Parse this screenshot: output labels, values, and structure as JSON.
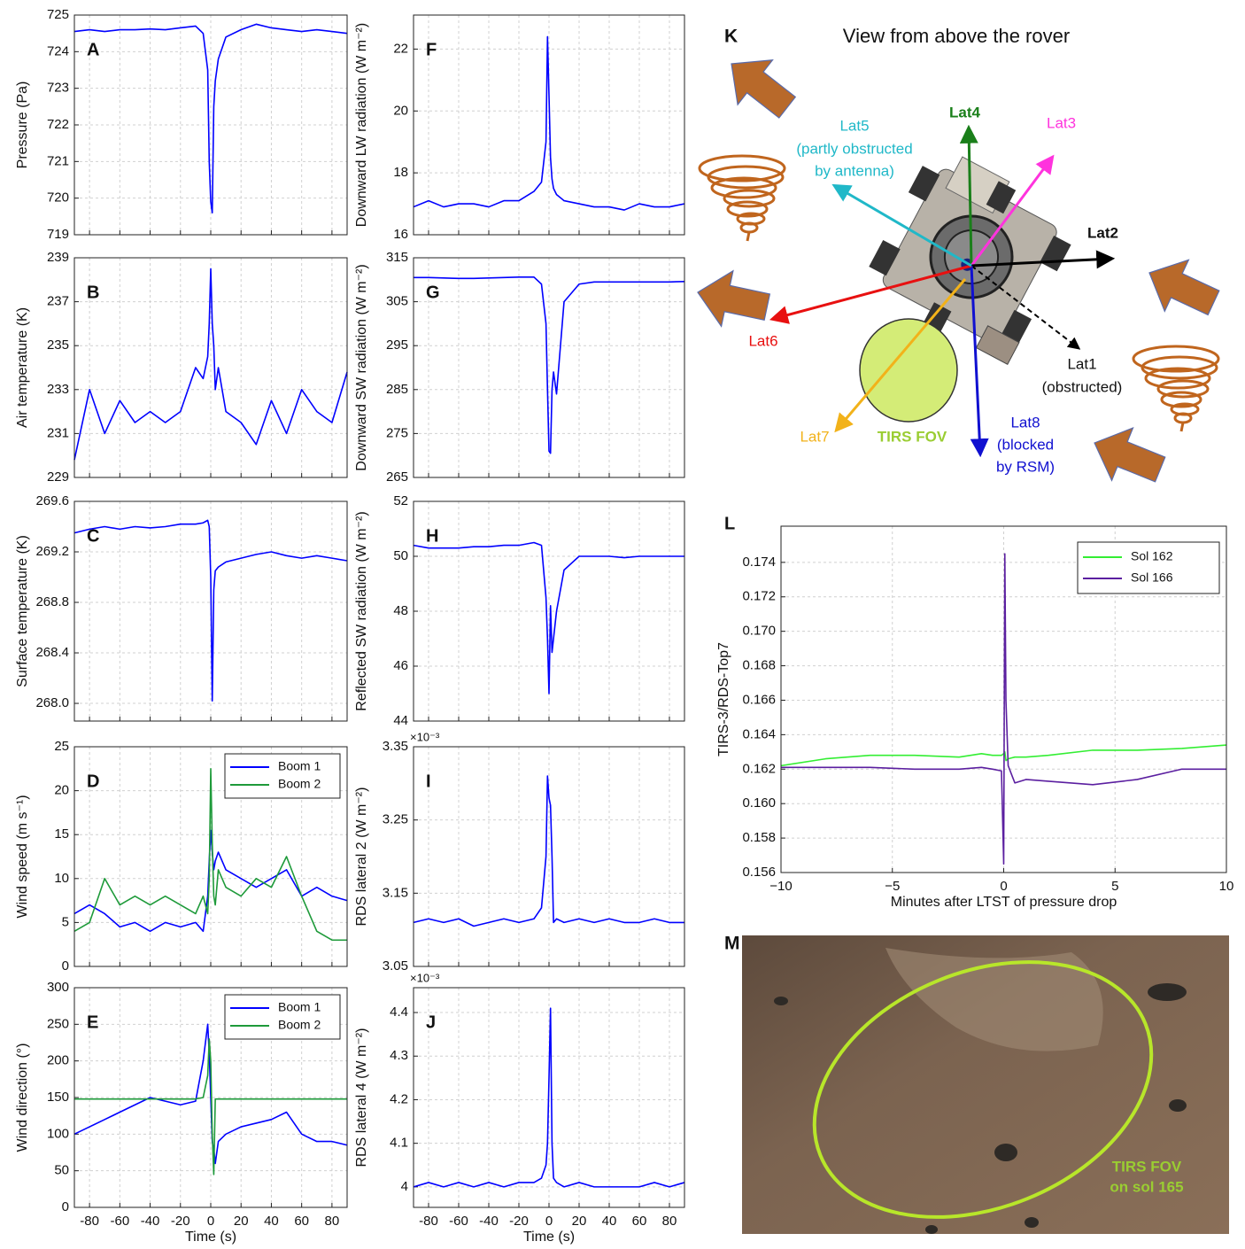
{
  "chart_data": [
    {
      "type": "line",
      "panel_label": "A",
      "ylabel": "Pressure (Pa)",
      "xlim": [
        -90,
        90
      ],
      "xticks": [
        -80,
        -60,
        -40,
        -20,
        0,
        20,
        40,
        60,
        80
      ],
      "xtick_labels": false,
      "ylim": [
        719,
        725
      ],
      "yticks": [
        719,
        720,
        721,
        722,
        723,
        724,
        725
      ],
      "grid": true,
      "x": [
        -90,
        -80,
        -70,
        -60,
        -50,
        -40,
        -30,
        -20,
        -10,
        -5,
        -2,
        -1,
        0,
        1,
        2,
        3,
        5,
        10,
        20,
        30,
        40,
        50,
        60,
        70,
        80,
        90
      ],
      "series": [
        {
          "color": "#0000ff",
          "values": [
            724.55,
            724.6,
            724.55,
            724.6,
            724.6,
            724.62,
            724.6,
            724.65,
            724.7,
            724.5,
            723.5,
            721,
            719.9,
            719.6,
            722.5,
            723.2,
            723.8,
            724.4,
            724.6,
            724.75,
            724.65,
            724.6,
            724.55,
            724.6,
            724.55,
            724.5
          ]
        }
      ]
    },
    {
      "type": "line",
      "panel_label": "B",
      "ylabel": "Air temperature (K)",
      "xlim": [
        -90,
        90
      ],
      "xticks": [
        -80,
        -60,
        -40,
        -20,
        0,
        20,
        40,
        60,
        80
      ],
      "xtick_labels": false,
      "ylim": [
        229,
        239
      ],
      "yticks": [
        229,
        231,
        233,
        235,
        237,
        239
      ],
      "grid": true,
      "x": [
        -90,
        -80,
        -70,
        -60,
        -50,
        -40,
        -30,
        -20,
        -10,
        -5,
        -2,
        -1,
        0,
        1,
        2,
        3,
        5,
        10,
        20,
        30,
        40,
        50,
        60,
        70,
        80,
        90
      ],
      "series": [
        {
          "color": "#0000ff",
          "values": [
            229.8,
            233,
            231,
            232.5,
            231.5,
            232,
            231.5,
            232,
            234,
            233.5,
            234.5,
            236,
            238.5,
            236,
            235,
            233,
            234,
            232,
            231.5,
            230.5,
            232.5,
            231,
            233,
            232,
            231.5,
            233.8
          ]
        }
      ]
    },
    {
      "type": "line",
      "panel_label": "C",
      "ylabel": "Surface temperature (K)",
      "xlim": [
        -90,
        90
      ],
      "xticks": [
        -80,
        -60,
        -40,
        -20,
        0,
        20,
        40,
        60,
        80
      ],
      "xtick_labels": false,
      "ylim": [
        267.86,
        269.6
      ],
      "yticks": [
        {
          "value": 268,
          "label": "268.0"
        },
        268.4,
        268.8,
        269.2,
        269.6
      ],
      "grid": true,
      "x": [
        -90,
        -80,
        -70,
        -60,
        -50,
        -40,
        -30,
        -20,
        -10,
        -5,
        -2,
        -1,
        0,
        1,
        2,
        3,
        5,
        10,
        20,
        30,
        40,
        50,
        60,
        70,
        80,
        90
      ],
      "series": [
        {
          "color": "#0000ff",
          "values": [
            269.35,
            269.38,
            269.4,
            269.38,
            269.4,
            269.39,
            269.4,
            269.42,
            269.42,
            269.43,
            269.45,
            269.4,
            269.0,
            268.02,
            268.9,
            269.05,
            269.08,
            269.12,
            269.15,
            269.18,
            269.2,
            269.17,
            269.15,
            269.17,
            269.15,
            269.13
          ]
        }
      ]
    },
    {
      "type": "line",
      "panel_label": "D",
      "ylabel": "Wind speed (m s⁻¹)",
      "xlim": [
        -90,
        90
      ],
      "xticks": [
        -80,
        -60,
        -40,
        -20,
        0,
        20,
        40,
        60,
        80
      ],
      "xtick_labels": false,
      "ylim": [
        0,
        25
      ],
      "yticks": [
        0,
        5,
        10,
        15,
        20,
        25
      ],
      "grid": true,
      "legend": "upper right",
      "x": [
        -90,
        -80,
        -70,
        -60,
        -50,
        -40,
        -30,
        -20,
        -10,
        -5,
        -2,
        -1,
        0,
        1,
        2,
        3,
        5,
        10,
        20,
        30,
        40,
        50,
        60,
        70,
        80,
        90
      ],
      "series": [
        {
          "name": "Boom 1",
          "color": "#0000ff",
          "values": [
            6,
            7,
            6,
            4.5,
            5,
            4,
            5,
            4.5,
            5,
            4,
            8,
            12,
            15.5,
            13,
            11,
            12,
            13,
            11,
            10,
            9,
            10,
            11,
            8,
            9,
            8,
            7.5
          ]
        },
        {
          "name": "Boom 2",
          "color": "#1e9a3a",
          "values": [
            4,
            5,
            10,
            7,
            8,
            7,
            8,
            7,
            6,
            8,
            6,
            10,
            22.5,
            14,
            8,
            7,
            11,
            9,
            8,
            10,
            9,
            12.5,
            8,
            4,
            3,
            3
          ]
        }
      ]
    },
    {
      "type": "line",
      "panel_label": "E",
      "ylabel": "Wind direction (°)",
      "xlabel": "Time (s)",
      "xlim": [
        -90,
        90
      ],
      "xticks": [
        -80,
        -60,
        -40,
        -20,
        0,
        20,
        40,
        60,
        80
      ],
      "xtick_labels": true,
      "ylim": [
        0,
        300
      ],
      "yticks": [
        0,
        50,
        100,
        150,
        200,
        250,
        300
      ],
      "grid": true,
      "legend": "upper right",
      "x": [
        -90,
        -80,
        -70,
        -60,
        -50,
        -40,
        -30,
        -20,
        -10,
        -5,
        -2,
        -1,
        0,
        1,
        2,
        3,
        5,
        10,
        20,
        30,
        40,
        50,
        60,
        70,
        80,
        90
      ],
      "series": [
        {
          "name": "Boom 1",
          "color": "#0000ff",
          "values": [
            100,
            110,
            120,
            130,
            140,
            150,
            145,
            140,
            145,
            200,
            250,
            210,
            150,
            90,
            80,
            60,
            90,
            100,
            110,
            115,
            120,
            130,
            100,
            90,
            90,
            85
          ]
        },
        {
          "name": "Boom 2",
          "color": "#1e9a3a",
          "values": [
            148,
            148,
            148,
            148,
            148,
            148,
            148,
            148,
            148,
            150,
            180,
            230,
            200,
            100,
            45,
            148,
            148,
            148,
            148,
            148,
            148,
            148,
            148,
            148,
            148,
            148
          ]
        }
      ]
    },
    {
      "type": "line",
      "panel_label": "F",
      "ylabel": "Downward LW radiation (W m⁻²)",
      "xlim": [
        -90,
        90
      ],
      "xticks": [
        -80,
        -60,
        -40,
        -20,
        0,
        20,
        40,
        60,
        80
      ],
      "xtick_labels": false,
      "ylim": [
        16,
        23.1
      ],
      "yticks": [
        16,
        18,
        20,
        22
      ],
      "grid": true,
      "x": [
        -90,
        -80,
        -70,
        -60,
        -50,
        -40,
        -30,
        -20,
        -10,
        -5,
        -2,
        -1,
        0,
        1,
        2,
        3,
        5,
        10,
        20,
        30,
        40,
        50,
        60,
        70,
        80,
        90
      ],
      "series": [
        {
          "color": "#0000ff",
          "values": [
            16.9,
            17.1,
            16.9,
            17,
            17,
            16.9,
            17.1,
            17.1,
            17.4,
            17.7,
            19,
            22.4,
            20.5,
            18.5,
            17.8,
            17.5,
            17.3,
            17.1,
            17,
            16.9,
            16.9,
            16.8,
            17,
            16.9,
            16.9,
            17
          ]
        }
      ]
    },
    {
      "type": "line",
      "panel_label": "G",
      "ylabel": "Downward SW radiation (W m⁻²)",
      "xlim": [
        -90,
        90
      ],
      "xticks": [
        -80,
        -60,
        -40,
        -20,
        0,
        20,
        40,
        60,
        80
      ],
      "xtick_labels": false,
      "ylim": [
        265,
        315
      ],
      "yticks": [
        265,
        275,
        285,
        295,
        305,
        315
      ],
      "grid": true,
      "x": [
        -90,
        -80,
        -70,
        -60,
        -50,
        -40,
        -30,
        -20,
        -10,
        -5,
        -2,
        -1,
        0,
        1,
        2,
        3,
        5,
        10,
        20,
        30,
        40,
        50,
        60,
        70,
        80,
        90
      ],
      "series": [
        {
          "color": "#0000ff",
          "values": [
            310.5,
            310.5,
            310.4,
            310.3,
            310.3,
            310.4,
            310.5,
            310.6,
            310.6,
            309,
            300,
            285,
            271,
            270.5,
            285,
            289,
            284,
            305,
            309,
            309.5,
            309.5,
            309.5,
            309.5,
            309.5,
            309.5,
            309.6
          ]
        }
      ]
    },
    {
      "type": "line",
      "panel_label": "H",
      "ylabel": "Reflected SW radiation (W m⁻²)",
      "xlim": [
        -90,
        90
      ],
      "xticks": [
        -80,
        -60,
        -40,
        -20,
        0,
        20,
        40,
        60,
        80
      ],
      "xtick_labels": false,
      "ylim": [
        44,
        52
      ],
      "yticks": [
        44,
        46,
        48,
        50,
        52
      ],
      "grid": true,
      "x": [
        -90,
        -80,
        -70,
        -60,
        -50,
        -40,
        -30,
        -20,
        -10,
        -5,
        -2,
        -1,
        0,
        1,
        2,
        3,
        5,
        10,
        20,
        30,
        40,
        50,
        60,
        70,
        80,
        90
      ],
      "series": [
        {
          "color": "#0000ff",
          "values": [
            50.4,
            50.3,
            50.3,
            50.3,
            50.35,
            50.35,
            50.4,
            50.4,
            50.5,
            50.4,
            48.5,
            47,
            45,
            48.2,
            46.5,
            47,
            48,
            49.5,
            50,
            50,
            50,
            49.95,
            50,
            50,
            50,
            50
          ]
        }
      ]
    },
    {
      "type": "line",
      "panel_label": "I",
      "ylabel": "RDS lateral 2 (W m⁻²)",
      "axis_multiplier": "×10⁻³",
      "xlim": [
        -90,
        90
      ],
      "xticks": [
        -80,
        -60,
        -40,
        -20,
        0,
        20,
        40,
        60,
        80
      ],
      "xtick_labels": false,
      "ylim": [
        3.05,
        3.35
      ],
      "yticks": [
        3.05,
        3.15,
        3.25,
        3.35
      ],
      "grid": true,
      "x": [
        -90,
        -80,
        -70,
        -60,
        -50,
        -40,
        -30,
        -20,
        -10,
        -5,
        -2,
        -1,
        0,
        1,
        2,
        3,
        5,
        10,
        20,
        30,
        40,
        50,
        60,
        70,
        80,
        90
      ],
      "series": [
        {
          "color": "#0000ff",
          "values": [
            3.11,
            3.115,
            3.11,
            3.115,
            3.105,
            3.11,
            3.115,
            3.11,
            3.115,
            3.13,
            3.2,
            3.31,
            3.28,
            3.27,
            3.2,
            3.11,
            3.115,
            3.11,
            3.115,
            3.11,
            3.115,
            3.11,
            3.11,
            3.115,
            3.11,
            3.11
          ]
        }
      ]
    },
    {
      "type": "line",
      "panel_label": "J",
      "ylabel": "RDS lateral 4 (W m⁻²)",
      "axis_multiplier": "×10⁻³",
      "xlabel": "Time (s)",
      "xlim": [
        -90,
        90
      ],
      "xticks": [
        -80,
        -60,
        -40,
        -20,
        0,
        20,
        40,
        60,
        80
      ],
      "xtick_labels": true,
      "ylim": [
        3.953,
        4.457
      ],
      "yticks": [
        4,
        4.1,
        4.2,
        4.3,
        4.4
      ],
      "grid": true,
      "x": [
        -90,
        -80,
        -70,
        -60,
        -50,
        -40,
        -30,
        -20,
        -10,
        -5,
        -2,
        -1,
        0,
        1,
        2,
        3,
        5,
        10,
        20,
        30,
        40,
        50,
        60,
        70,
        80,
        90
      ],
      "series": [
        {
          "color": "#0000ff",
          "values": [
            4.0,
            4.01,
            4.0,
            4.01,
            4.0,
            4.01,
            4.0,
            4.01,
            4.01,
            4.02,
            4.05,
            4.1,
            4.25,
            4.41,
            4.1,
            4.02,
            4.01,
            4.0,
            4.01,
            4.0,
            4.0,
            4.0,
            4.0,
            4.01,
            4.0,
            4.01
          ]
        }
      ]
    },
    {
      "type": "line",
      "panel_label": "L",
      "ylabel": "TIRS-3/RDS-Top7",
      "xlabel": "Minutes after LTST of pressure drop",
      "xlim": [
        -10,
        10
      ],
      "xticks": [
        {
          "value": -10,
          "label": "−10"
        },
        {
          "value": -5,
          "label": "−5"
        },
        0,
        5,
        10
      ],
      "xtick_labels": true,
      "ylim": [
        0.156,
        0.1761
      ],
      "yticks": [
        {
          "value": 0.156,
          "label": "0.156"
        },
        {
          "value": 0.158,
          "label": "0.158"
        },
        {
          "value": 0.16,
          "label": "0.160"
        },
        {
          "value": 0.162,
          "label": "0.162"
        },
        {
          "value": 0.164,
          "label": "0.164"
        },
        {
          "value": 0.166,
          "label": "0.166"
        },
        {
          "value": 0.168,
          "label": "0.168"
        },
        {
          "value": 0.17,
          "label": "0.170"
        },
        {
          "value": 0.172,
          "label": "0.172"
        },
        {
          "value": 0.174,
          "label": "0.174"
        }
      ],
      "grid": true,
      "legend": "upper right",
      "x": [
        -10,
        -8,
        -6,
        -4,
        -2,
        -1,
        -0.5,
        -0.1,
        0,
        0.05,
        0.1,
        0.2,
        0.5,
        1,
        2,
        4,
        6,
        8,
        10
      ],
      "series": [
        {
          "name": "Sol 162",
          "color": "#33ee33",
          "values": [
            0.1622,
            0.1626,
            0.1628,
            0.1628,
            0.1627,
            0.1629,
            0.1628,
            0.1628,
            0.1629,
            0.163,
            0.1625,
            0.1626,
            0.1627,
            0.1627,
            0.1628,
            0.1631,
            0.1631,
            0.1632,
            0.1634
          ]
        },
        {
          "name": "Sol 166",
          "color": "#5b1fa0",
          "values": [
            0.1621,
            0.1621,
            0.1621,
            0.162,
            0.162,
            0.1621,
            0.162,
            0.1619,
            0.1565,
            0.1745,
            0.166,
            0.1622,
            0.1612,
            0.1614,
            0.1613,
            0.1611,
            0.1614,
            0.162,
            0.162
          ]
        }
      ]
    }
  ],
  "panel_k": {
    "label": "K",
    "title": "View from above the rover",
    "lat1": [
      "Lat1",
      "(obstructed)"
    ],
    "lat2": "Lat2",
    "lat3": "Lat3",
    "lat4": "Lat4",
    "lat5": [
      "Lat5",
      "(partly obstructed",
      "by antenna)"
    ],
    "lat6": "Lat6",
    "lat7": "Lat7",
    "lat8": [
      "Lat8",
      "(blocked",
      "by RSM)"
    ],
    "fov": "TIRS FOV"
  },
  "panel_m": {
    "label": "M",
    "caption": [
      "TIRS FOV",
      "on sol 165"
    ]
  }
}
